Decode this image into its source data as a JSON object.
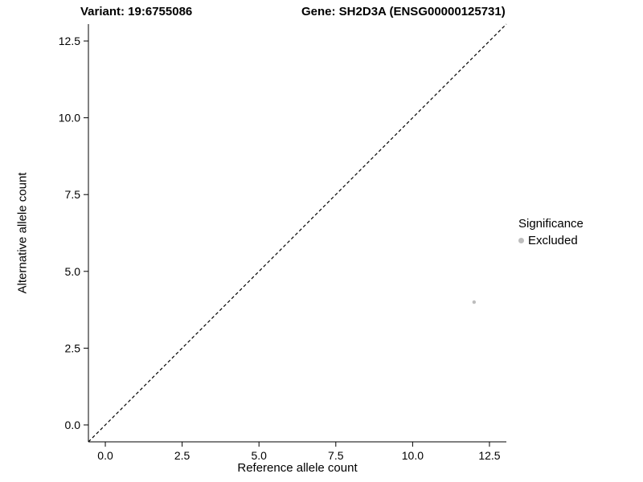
{
  "chart_data": {
    "type": "scatter",
    "title_left": "Variant: 19:6755086",
    "title_right": "Gene: SH2D3A (ENSG00000125731)",
    "xlabel": "Reference allele count",
    "ylabel": "Alternative allele count",
    "xlim": [
      -0.55,
      13.05
    ],
    "ylim": [
      -0.55,
      13.05
    ],
    "x_ticks": [
      0.0,
      2.5,
      5.0,
      7.5,
      10.0,
      12.5
    ],
    "y_ticks": [
      0.0,
      2.5,
      5.0,
      7.5,
      10.0,
      12.5
    ],
    "grid": false,
    "identity_line": {
      "style": "dashed",
      "color": "#000000",
      "slope": 1,
      "intercept": 0
    },
    "series": [
      {
        "name": "Excluded",
        "color": "#bdbdbd",
        "point_radius": 2.2,
        "points": [
          {
            "x": 12,
            "y": 4
          }
        ]
      }
    ],
    "legend": {
      "title": "Significance",
      "position": "right",
      "entries": [
        {
          "label": "Excluded",
          "color": "#bdbdbd"
        }
      ]
    }
  }
}
